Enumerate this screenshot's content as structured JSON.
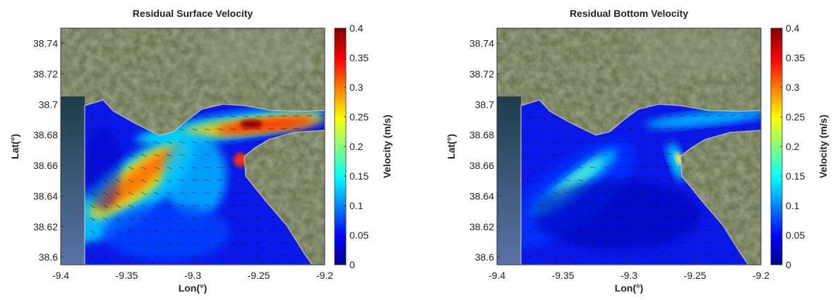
{
  "chart_data": [
    {
      "type": "heatmap",
      "title": "Residual Surface Velocity",
      "xlabel": "Lon(°)",
      "ylabel": "Lat(°)",
      "colorbar_label": "Velocity (m/s)",
      "xlim": [
        -9.4,
        -9.2
      ],
      "ylim": [
        38.595,
        38.75
      ],
      "clim": [
        0,
        0.4
      ],
      "xticks": [
        "-9.4",
        "-9.35",
        "-9.3",
        "-9.25",
        "-9.2"
      ],
      "yticks": [
        "38.6",
        "38.62",
        "38.64",
        "38.66",
        "38.68",
        "38.7",
        "38.72",
        "38.74"
      ],
      "cticks": [
        "0",
        "0.05",
        "0.1",
        "0.15",
        "0.2",
        "0.25",
        "0.3",
        "0.35",
        "0.4"
      ],
      "hotspots": [
        {
          "lon": -9.25,
          "lat": 38.683,
          "velocity": 0.4
        },
        {
          "lon": -9.34,
          "lat": 38.66,
          "velocity": 0.32
        },
        {
          "lon": -9.262,
          "lat": 38.66,
          "velocity": 0.38
        }
      ]
    },
    {
      "type": "heatmap",
      "title": "Residual Bottom Velocity",
      "xlabel": "Lon(°)",
      "ylabel": "Lat(°)",
      "colorbar_label": "Velocity (m/s)",
      "xlim": [
        -9.4,
        -9.2
      ],
      "ylim": [
        38.595,
        38.75
      ],
      "clim": [
        0,
        0.4
      ],
      "xticks": [
        "-9.4",
        "-9.35",
        "-9.3",
        "-9.25",
        "-9.2"
      ],
      "yticks": [
        "38.6",
        "38.62",
        "38.64",
        "38.66",
        "38.68",
        "38.7",
        "38.72",
        "38.74"
      ],
      "cticks": [
        "0",
        "0.05",
        "0.1",
        "0.15",
        "0.2",
        "0.25",
        "0.3",
        "0.35",
        "0.4"
      ],
      "hotspots": [
        {
          "lon": -9.33,
          "lat": 38.66,
          "velocity": 0.2
        },
        {
          "lon": -9.26,
          "lat": 38.66,
          "velocity": 0.2
        },
        {
          "lon": -9.22,
          "lat": 38.685,
          "velocity": 0.15
        }
      ]
    }
  ],
  "colors": {
    "land": "#6f7a55",
    "colormap": [
      "#00008f",
      "#0000ff",
      "#00ffff",
      "#ffff00",
      "#ff0000",
      "#800000"
    ]
  }
}
